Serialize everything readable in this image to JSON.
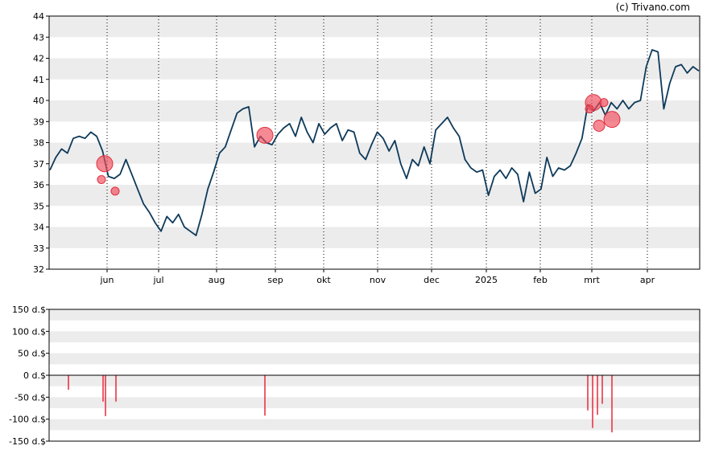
{
  "credit": "(c) Trivano.com",
  "colors": {
    "line": "#0e3a5a",
    "marker_fill": "#f04a5a",
    "marker_stroke": "#e0303e",
    "transaction_bar": "#e8283a",
    "band": "#ececec",
    "axis": "#000000",
    "zero_line": "#000000"
  },
  "chart_data": [
    {
      "type": "line",
      "title": "",
      "xlabel": "",
      "ylabel": "",
      "ylim": [
        32,
        44
      ],
      "y_ticks": [
        "32",
        "33",
        "34",
        "35",
        "36",
        "37",
        "38",
        "39",
        "40",
        "41",
        "42",
        "43",
        "44"
      ],
      "x_tick_labels": [
        "jun",
        "jul",
        "aug",
        "sep",
        "okt",
        "nov",
        "dec",
        "2025",
        "feb",
        "mrt",
        "apr"
      ],
      "grid": "alternating horizontal bands, dotted vertical lines at month starts",
      "series": [
        {
          "values": [
            36.7,
            37.3,
            37.7,
            37.5,
            38.2,
            38.3,
            38.2,
            38.5,
            38.3,
            37.6,
            36.4,
            36.3,
            36.5,
            37.2,
            36.5,
            35.8,
            35.1,
            34.7,
            34.2,
            33.8,
            34.5,
            34.2,
            34.6,
            34.0,
            33.8,
            33.6,
            34.6,
            35.8,
            36.6,
            37.5,
            37.8,
            38.6,
            39.4,
            39.6,
            39.7,
            37.8,
            38.3,
            38.0,
            37.9,
            38.4,
            38.7,
            38.9,
            38.3,
            39.2,
            38.5,
            38.0,
            38.9,
            38.4,
            38.7,
            38.9,
            38.1,
            38.6,
            38.5,
            37.5,
            37.2,
            37.9,
            38.5,
            38.2,
            37.6,
            38.1,
            37.0,
            36.3,
            37.2,
            36.9,
            37.8,
            37.0,
            38.6,
            38.9,
            39.2,
            38.7,
            38.3,
            37.2,
            36.8,
            36.6,
            36.7,
            35.5,
            36.4,
            36.7,
            36.3,
            36.8,
            36.5,
            35.2,
            36.6,
            35.6,
            35.8,
            37.3,
            36.4,
            36.8,
            36.7,
            36.9,
            37.5,
            38.2,
            39.8,
            39.5,
            39.9,
            39.3,
            39.9,
            39.6,
            40.0,
            39.6,
            39.9,
            40.0,
            41.6,
            42.4,
            42.3,
            39.6,
            40.8,
            41.6,
            41.7,
            41.3,
            41.6,
            41.4
          ]
        }
      ],
      "markers": [
        {
          "date_label": "jun",
          "value": 37.0,
          "size": "large"
        },
        {
          "date_label": "jun",
          "value": 36.25,
          "size": "small"
        },
        {
          "date_label": "jun",
          "value": 35.7,
          "size": "small"
        },
        {
          "date_label": "sep",
          "value": 38.35,
          "size": "large"
        },
        {
          "date_label": "mrt",
          "value": 39.9,
          "size": "large"
        },
        {
          "date_label": "mrt",
          "value": 39.6,
          "size": "small"
        },
        {
          "date_label": "mrt",
          "value": 38.8,
          "size": "medium"
        },
        {
          "date_label": "mrt",
          "value": 39.9,
          "size": "small"
        },
        {
          "date_label": "mrt",
          "value": 39.1,
          "size": "large"
        }
      ]
    },
    {
      "type": "bar",
      "title": "",
      "xlabel": "",
      "ylabel": "",
      "ylim": [
        -150,
        150
      ],
      "y_ticks": [
        "-150 d.$",
        "-100 d.$",
        "-50 d.$",
        "0 d.$",
        "50 d.$",
        "100 d.$",
        "150 d.$"
      ],
      "values": [
        -33,
        -60,
        -93,
        -60,
        -92,
        -80,
        -120,
        -90,
        -65,
        -130
      ]
    }
  ]
}
